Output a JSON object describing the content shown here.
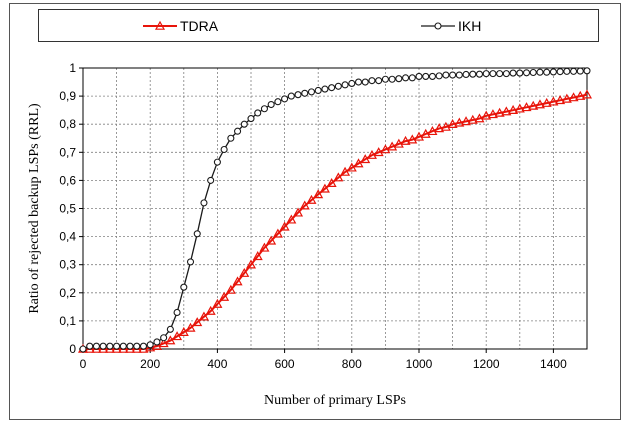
{
  "chart_data": {
    "type": "line",
    "xlabel": "Number of primary LSPs",
    "ylabel": "Ratio of rejected backup LSPs (RRL)",
    "xlim": [
      0,
      1500
    ],
    "ylim": [
      0,
      1
    ],
    "xticks": [
      0,
      200,
      400,
      600,
      800,
      1000,
      1200,
      1400
    ],
    "yticks": [
      0,
      0.1,
      0.2,
      0.3,
      0.4,
      0.5,
      0.6,
      0.7,
      0.8,
      0.9,
      1
    ],
    "ytick_labels": [
      "0",
      "0,1",
      "0,2",
      "0,3",
      "0,4",
      "0,5",
      "0,6",
      "0,7",
      "0,8",
      "0,9",
      "1"
    ],
    "grid": true,
    "legend_position": "top",
    "x": [
      0,
      20,
      40,
      60,
      80,
      100,
      120,
      140,
      160,
      180,
      200,
      220,
      240,
      260,
      280,
      300,
      320,
      340,
      360,
      380,
      400,
      420,
      440,
      460,
      480,
      500,
      520,
      540,
      560,
      580,
      600,
      620,
      640,
      660,
      680,
      700,
      720,
      740,
      760,
      780,
      800,
      820,
      840,
      860,
      880,
      900,
      920,
      940,
      960,
      980,
      1000,
      1020,
      1040,
      1060,
      1080,
      1100,
      1120,
      1140,
      1160,
      1180,
      1200,
      1220,
      1240,
      1260,
      1280,
      1300,
      1320,
      1340,
      1360,
      1380,
      1400,
      1420,
      1440,
      1460,
      1480,
      1500
    ],
    "series": [
      {
        "name": "TDRA",
        "color": "#e8140a",
        "marker": "triangle",
        "values": [
          0,
          0,
          0,
          0,
          0,
          0,
          0,
          0,
          0,
          0,
          0.005,
          0.01,
          0.02,
          0.03,
          0.045,
          0.06,
          0.075,
          0.095,
          0.115,
          0.135,
          0.16,
          0.185,
          0.21,
          0.24,
          0.27,
          0.3,
          0.33,
          0.36,
          0.385,
          0.41,
          0.435,
          0.46,
          0.485,
          0.51,
          0.53,
          0.55,
          0.57,
          0.59,
          0.61,
          0.63,
          0.645,
          0.66,
          0.675,
          0.69,
          0.7,
          0.71,
          0.72,
          0.73,
          0.74,
          0.745,
          0.755,
          0.765,
          0.775,
          0.785,
          0.79,
          0.8,
          0.805,
          0.81,
          0.815,
          0.82,
          0.83,
          0.835,
          0.84,
          0.845,
          0.85,
          0.855,
          0.86,
          0.865,
          0.87,
          0.875,
          0.88,
          0.885,
          0.89,
          0.895,
          0.9,
          0.905
        ]
      },
      {
        "name": "IKH",
        "color": "#1a1a1a",
        "marker": "circle",
        "values": [
          0,
          0.01,
          0.01,
          0.01,
          0.01,
          0.01,
          0.01,
          0.01,
          0.01,
          0.01,
          0.015,
          0.025,
          0.04,
          0.07,
          0.13,
          0.22,
          0.31,
          0.41,
          0.52,
          0.6,
          0.665,
          0.71,
          0.75,
          0.775,
          0.8,
          0.82,
          0.84,
          0.855,
          0.87,
          0.88,
          0.89,
          0.9,
          0.905,
          0.91,
          0.915,
          0.92,
          0.925,
          0.93,
          0.935,
          0.94,
          0.945,
          0.95,
          0.95,
          0.955,
          0.955,
          0.96,
          0.96,
          0.962,
          0.965,
          0.965,
          0.97,
          0.97,
          0.97,
          0.972,
          0.975,
          0.975,
          0.975,
          0.977,
          0.978,
          0.978,
          0.98,
          0.98,
          0.98,
          0.98,
          0.982,
          0.982,
          0.983,
          0.984,
          0.985,
          0.985,
          0.986,
          0.987,
          0.988,
          0.988,
          0.989,
          0.99
        ]
      }
    ]
  }
}
